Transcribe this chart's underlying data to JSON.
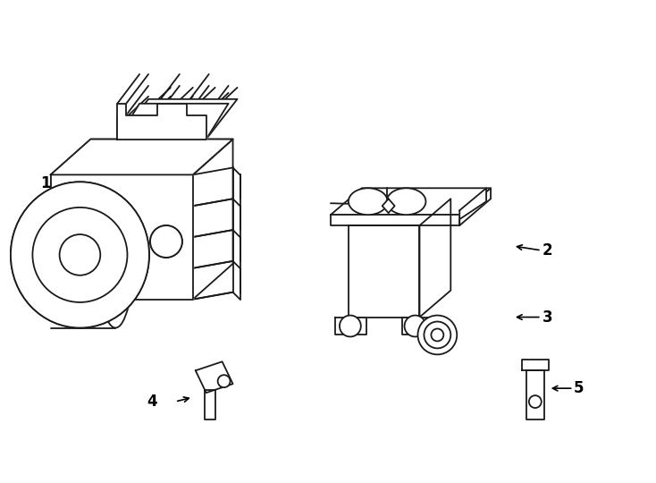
{
  "background_color": "#ffffff",
  "line_color": "#1a1a1a",
  "line_width": 1.3,
  "fig_width": 7.34,
  "fig_height": 5.4,
  "dpi": 100,
  "font_size": 11
}
